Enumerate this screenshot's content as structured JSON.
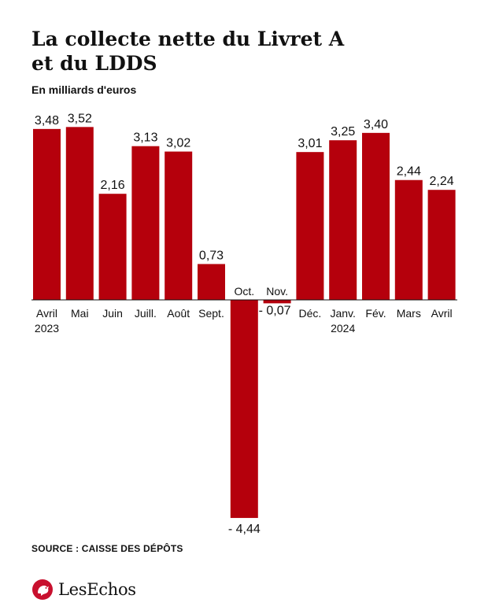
{
  "title_lines": [
    "La collecte nette du Livret A",
    "et du LDDS"
  ],
  "subtitle": "En milliards d'euros",
  "source": "SOURCE : CAISSE DES DÉPÔTS",
  "logo_text": "LesEchos",
  "colors": {
    "bar": "#b5000c",
    "text": "#111111",
    "logo": "#c8102e"
  },
  "chart_data": {
    "type": "bar",
    "title": "La collecte nette du Livret A et du LDDS",
    "subtitle": "En milliards d'euros",
    "unit": "milliards d'euros",
    "categories": [
      [
        "Avril",
        "2023"
      ],
      [
        "Mai"
      ],
      [
        "Juin"
      ],
      [
        "Juill."
      ],
      [
        "Août"
      ],
      [
        "Sept."
      ],
      [
        "Oct."
      ],
      [
        "Nov."
      ],
      [
        "Déc."
      ],
      [
        "Janv.",
        "2024"
      ],
      [
        "Fév."
      ],
      [
        "Mars"
      ],
      [
        "Avril"
      ]
    ],
    "values": [
      3.48,
      3.52,
      2.16,
      3.13,
      3.02,
      0.73,
      -4.44,
      -0.07,
      3.01,
      3.25,
      3.4,
      2.44,
      2.24
    ],
    "value_labels": [
      "3,48",
      "3,52",
      "2,16",
      "3,13",
      "3,02",
      "0,73",
      "- 4,44",
      "- 0,07",
      "3,01",
      "3,25",
      "3,40",
      "2,44",
      "2,24"
    ],
    "ylim": [
      -4.44,
      3.52
    ],
    "grid": false,
    "legend": "none"
  }
}
